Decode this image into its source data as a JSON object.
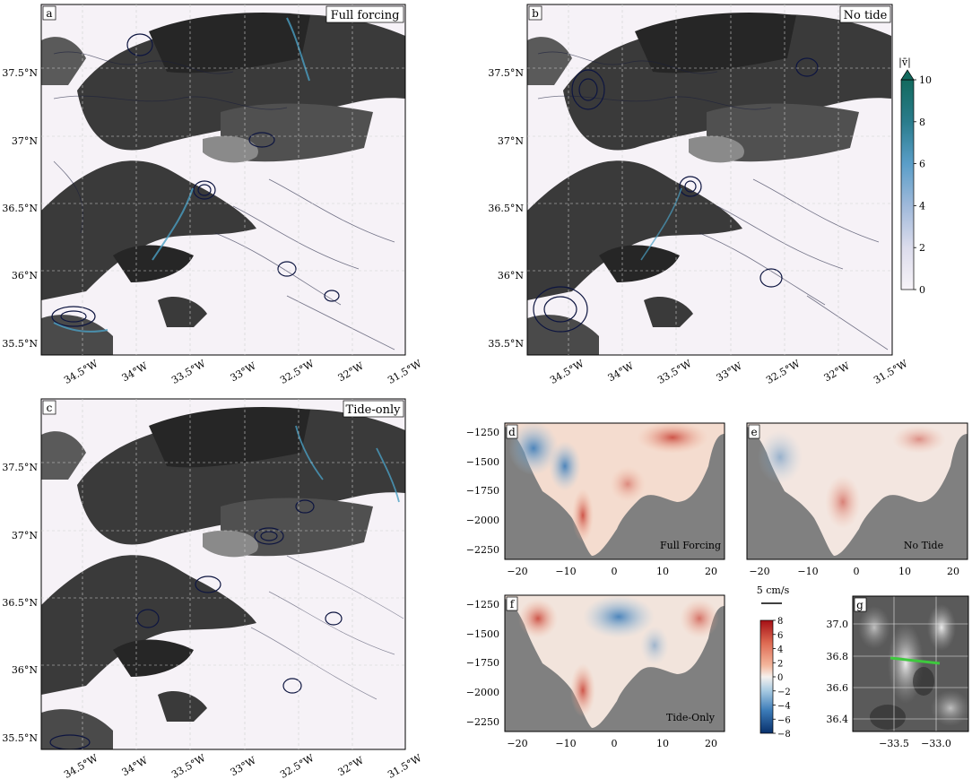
{
  "panels": {
    "a": {
      "letter": "a",
      "title": "Full forcing"
    },
    "b": {
      "letter": "b",
      "title": "No tide"
    },
    "c": {
      "letter": "c",
      "title": "Tide-only"
    },
    "d": {
      "letter": "d",
      "title": "Full Forcing"
    },
    "e": {
      "letter": "e",
      "title": "No Tide"
    },
    "f": {
      "letter": "f",
      "title": "Tide-Only"
    },
    "g": {
      "letter": "g"
    }
  },
  "map_axes": {
    "lat_ticks": [
      "37.5°N",
      "37°N",
      "36.5°N",
      "36°N",
      "35.5°N"
    ],
    "lon_ticks": [
      "34.5°W",
      "34°W",
      "33.5°W",
      "33°W",
      "32.5°W",
      "32°W",
      "31.5°W"
    ]
  },
  "speed_colorbar": {
    "label": "|v̄|",
    "ticks": [
      "0",
      "2",
      "4",
      "6",
      "8",
      "10"
    ],
    "colors": [
      "#f7f3f8",
      "#c9cde4",
      "#6aa8cf",
      "#2b7f9a",
      "#136a5e"
    ]
  },
  "section_colorbar": {
    "ticks": [
      "8",
      "6",
      "4",
      "2",
      "0",
      "−2",
      "−4",
      "−6",
      "−8"
    ],
    "colors": [
      "#a50f15",
      "#de6a52",
      "#f4b79d",
      "#f6f1ee",
      "#a9cbe2",
      "#3b7bb8",
      "#08306b"
    ]
  },
  "scale_arrow": {
    "label": "5 cm/s"
  },
  "section_axes": {
    "y_ticks": [
      "−1250",
      "−1500",
      "−1750",
      "−2000",
      "−2250"
    ],
    "x_ticks": [
      "−20",
      "−10",
      "0",
      "10",
      "20"
    ]
  },
  "inset_axes": {
    "y_ticks": [
      "37.0",
      "36.8",
      "36.6",
      "36.4"
    ],
    "x_ticks": [
      "−33.5",
      "−33.0"
    ]
  },
  "chart_data": [
    {
      "type": "heatmap",
      "panel": "a",
      "title": "Full forcing",
      "quantity": "|v̄|",
      "lon_range": [
        -34.8,
        -31.5
      ],
      "lat_range": [
        35.4,
        37.9
      ]
    },
    {
      "type": "heatmap",
      "panel": "b",
      "title": "No tide",
      "quantity": "|v̄|",
      "lon_range": [
        -34.8,
        -31.5
      ],
      "lat_range": [
        35.4,
        37.9
      ]
    },
    {
      "type": "heatmap",
      "panel": "c",
      "title": "Tide-only",
      "quantity": "|v̄|",
      "lon_range": [
        -34.8,
        -31.5
      ],
      "lat_range": [
        35.4,
        37.9
      ]
    },
    {
      "type": "heatmap",
      "panel": "d",
      "title": "Full Forcing",
      "x_range": [
        -23,
        23
      ],
      "y_range": [
        -2400,
        -1200
      ],
      "ylim": [
        -2400,
        -1200
      ],
      "z_range": [
        -8,
        8
      ]
    },
    {
      "type": "heatmap",
      "panel": "e",
      "title": "No Tide",
      "x_range": [
        -23,
        23
      ],
      "y_range": [
        -2400,
        -1200
      ],
      "z_range": [
        -8,
        8
      ]
    },
    {
      "type": "heatmap",
      "panel": "f",
      "title": "Tide-Only",
      "x_range": [
        -23,
        23
      ],
      "y_range": [
        -2400,
        -1200
      ],
      "z_range": [
        -8,
        8
      ]
    },
    {
      "type": "heatmap",
      "panel": "g",
      "x_range": [
        -33.75,
        -32.75
      ],
      "y_range": [
        36.32,
        37.08
      ],
      "section_line": [
        [
          -33.5,
          36.8
        ],
        [
          -33.1,
          36.77
        ]
      ]
    }
  ]
}
